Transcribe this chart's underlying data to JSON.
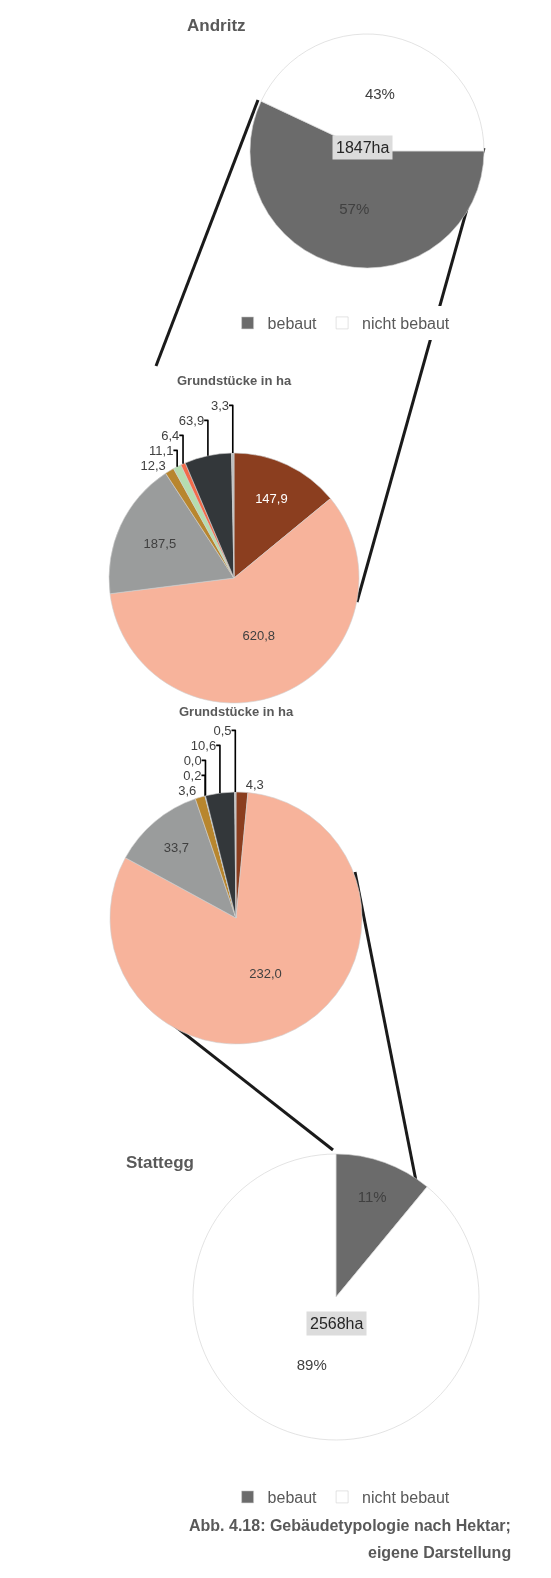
{
  "chart_data": [
    {
      "type": "pie",
      "title": "Andritz",
      "categories": [
        "bebaut",
        "nicht bebaut"
      ],
      "values": [
        57,
        43
      ],
      "colors": [
        "#6b6b6b",
        "#ffffff"
      ],
      "value_labels": [
        "57%",
        "43%"
      ],
      "legend": "bottom",
      "annotations": [
        "1847ha"
      ]
    },
    {
      "type": "pie",
      "title": "Grundstücke in ha",
      "categories": [
        null,
        null,
        null,
        null,
        null,
        null,
        null,
        null
      ],
      "values": [
        147.9,
        620.8,
        187.5,
        12.3,
        11.1,
        6.4,
        63.9,
        3.3
      ],
      "colors": [
        "#8b3e1f",
        "#f7b39b",
        "#9a9c9c",
        "#b8862e",
        "#b5ddb0",
        "#f26b4a",
        "#33373a",
        "#bdbdbd"
      ],
      "value_labels": [
        "147,9",
        "620,8",
        "187,5",
        "12,3",
        "11,1",
        "6,4",
        "63,9",
        "3,3"
      ]
    },
    {
      "type": "pie",
      "title": "Grundstücke in ha",
      "categories": [
        null,
        null,
        null,
        null,
        null,
        null,
        null,
        null
      ],
      "values": [
        4.3,
        232.0,
        33.7,
        3.6,
        0.2,
        0.0,
        10.6,
        0.5
      ],
      "colors": [
        "#8b3e1f",
        "#f7b39b",
        "#9a9c9c",
        "#b8862e",
        "#b5ddb0",
        "#f26b4a",
        "#33373a",
        "#bdbdbd"
      ],
      "value_labels": [
        "4,3",
        "232,0",
        "33,7",
        "3,6",
        "0,2",
        "0,0",
        "10,6",
        "0,5"
      ]
    },
    {
      "type": "pie",
      "title": "Stattegg",
      "categories": [
        "bebaut",
        "nicht bebaut"
      ],
      "values": [
        11,
        89
      ],
      "colors": [
        "#6b6b6b",
        "#ffffff"
      ],
      "value_labels": [
        "11%",
        "89%"
      ],
      "legend": "bottom",
      "annotations": [
        "2568ha",
        "Abb. 4.18: Gebäudetypologie nach Hektar;",
        "eigene Darstellung"
      ]
    }
  ]
}
